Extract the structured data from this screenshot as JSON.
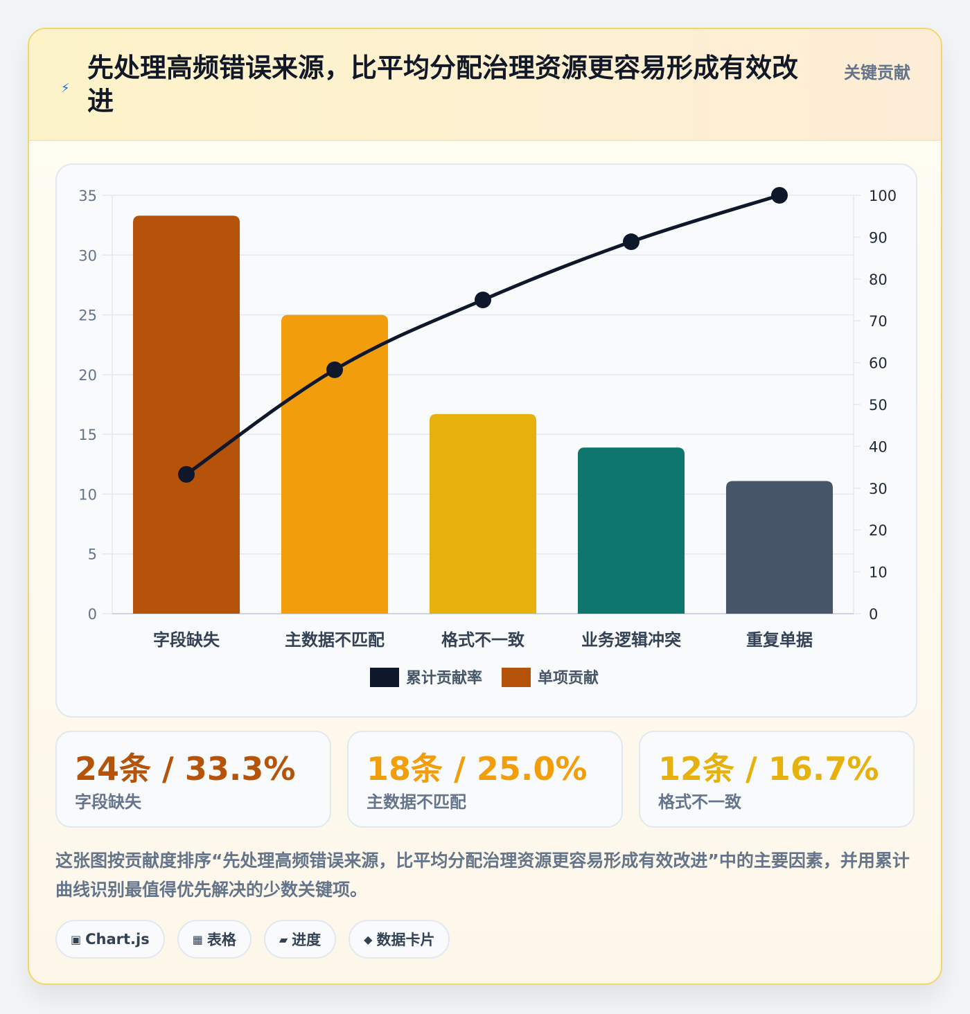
{
  "header": {
    "icon": "lightning-icon",
    "title": "先处理高频错误来源，比平均分配治理资源更容易形成有效改进",
    "tag": "关键贡献"
  },
  "chart_data": {
    "type": "bar",
    "categories": [
      "字段缺失",
      "主数据不匹配",
      "格式不一致",
      "业务逻辑冲突",
      "重复单据"
    ],
    "series": [
      {
        "name": "单项贡献",
        "type": "bar",
        "axis": "left",
        "values": [
          33.3,
          25.0,
          16.7,
          13.9,
          11.1
        ],
        "colors": [
          "#b45309",
          "#f29e0c",
          "#e6b10d",
          "#0f766e",
          "#475569"
        ]
      },
      {
        "name": "累计贡献率",
        "type": "line",
        "axis": "right",
        "values": [
          33.3,
          58.3,
          75.0,
          88.9,
          100.0
        ],
        "color": "#0f172a"
      }
    ],
    "y_left": {
      "range": [
        0,
        35
      ],
      "ticks": [
        0,
        5,
        10,
        15,
        20,
        25,
        30,
        35
      ]
    },
    "y_right": {
      "range": [
        0,
        100
      ],
      "ticks": [
        0,
        10,
        20,
        30,
        40,
        50,
        60,
        70,
        80,
        90,
        100
      ]
    },
    "legend": {
      "position": "bottom",
      "items": [
        {
          "label": "累计贡献率",
          "color": "#0f172a"
        },
        {
          "label": "单项贡献",
          "color": "#b45309"
        }
      ]
    },
    "grid": true
  },
  "stats": [
    {
      "value": "24条 / 33.3%",
      "label": "字段缺失",
      "color": "#b45309"
    },
    {
      "value": "18条 / 25.0%",
      "label": "主数据不匹配",
      "color": "#f29e0c"
    },
    {
      "value": "12条 / 16.7%",
      "label": "格式不一致",
      "color": "#e6b10d"
    }
  ],
  "description": "这张图按贡献度排序“先处理高频错误来源，比平均分配治理资源更容易形成有效改进”中的主要因素，并用累计曲线识别最值得优先解决的少数关键项。",
  "tags": [
    {
      "icon": "▣",
      "label": "Chart.js"
    },
    {
      "icon": "▦",
      "label": "表格"
    },
    {
      "icon": "▰",
      "label": "进度"
    },
    {
      "icon": "◆",
      "label": "数据卡片"
    }
  ]
}
